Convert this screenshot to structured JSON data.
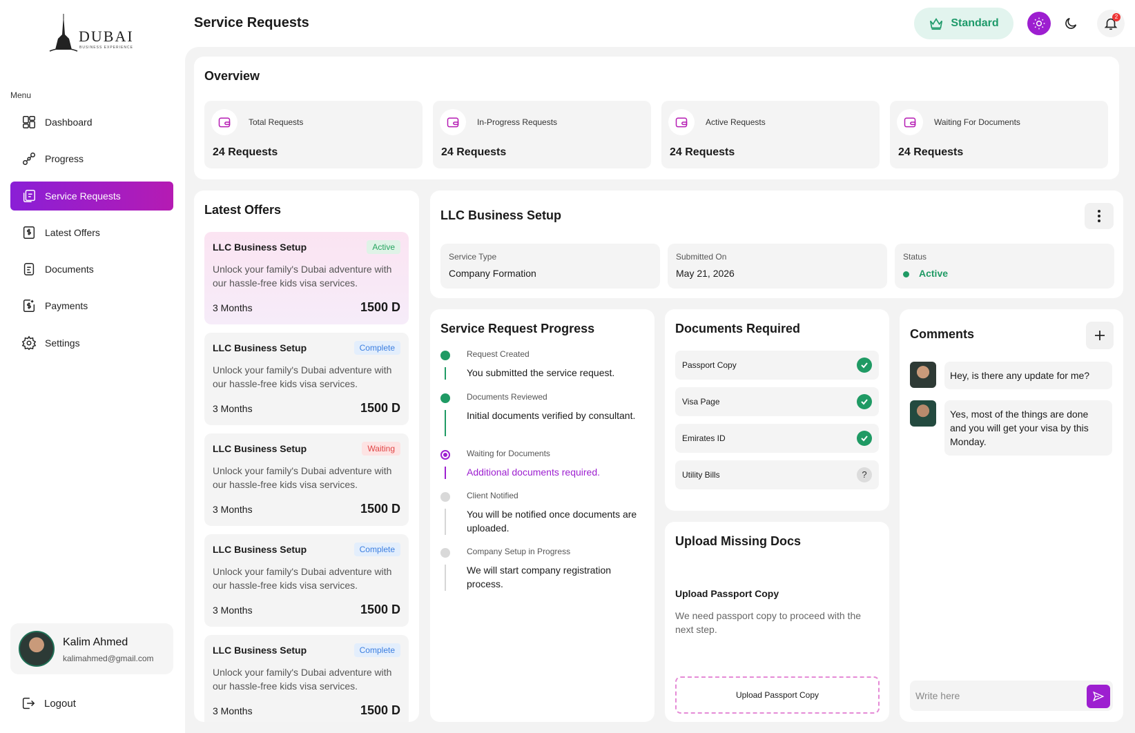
{
  "brand": {
    "name": "DUBAI",
    "tagline": "BUSINESS EXPERIENCE"
  },
  "sidebar": {
    "menu_label": "Menu",
    "items": [
      {
        "label": "Dashboard",
        "icon": "dashboard-icon"
      },
      {
        "label": "Progress",
        "icon": "progress-icon"
      },
      {
        "label": "Service Requests",
        "icon": "service-requests-icon",
        "active": true
      },
      {
        "label": "Latest Offers",
        "icon": "offers-icon"
      },
      {
        "label": "Documents",
        "icon": "documents-icon"
      },
      {
        "label": "Payments",
        "icon": "payments-icon"
      },
      {
        "label": "Settings",
        "icon": "gear-icon"
      }
    ],
    "user": {
      "name": "Kalim Ahmed",
      "email": "kalimahmed@gmail.com"
    },
    "logout_label": "Logout"
  },
  "header": {
    "title": "Service Requests",
    "plan_label": "Standard",
    "notification_count": "2"
  },
  "overview": {
    "title": "Overview",
    "stats": [
      {
        "label": "Total Requests",
        "value": "24 Requests"
      },
      {
        "label": "In-Progress Requests",
        "value": "24 Requests"
      },
      {
        "label": "Active Requests",
        "value": "24 Requests"
      },
      {
        "label": "Waiting For Documents",
        "value": "24 Requests"
      }
    ]
  },
  "offers": {
    "title": "Latest Offers",
    "items": [
      {
        "title": "LLC Business Setup",
        "badge": "Active",
        "desc": "Unlock your family's Dubai adventure with our hassle-free kids visa services.",
        "duration": "3 Months",
        "price": "1500 D"
      },
      {
        "title": "LLC Business Setup",
        "badge": "Complete",
        "desc": "Unlock your family's Dubai adventure with our hassle-free kids visa services.",
        "duration": "3 Months",
        "price": "1500 D"
      },
      {
        "title": "LLC Business Setup",
        "badge": "Waiting",
        "desc": "Unlock your family's Dubai adventure with our hassle-free kids visa services.",
        "duration": "3 Months",
        "price": "1500 D"
      },
      {
        "title": "LLC Business Setup",
        "badge": "Complete",
        "desc": "Unlock your family's Dubai adventure with our hassle-free kids visa services.",
        "duration": "3 Months",
        "price": "1500 D"
      },
      {
        "title": "LLC Business Setup",
        "badge": "Complete",
        "desc": "Unlock your family's Dubai adventure with our hassle-free kids visa services.",
        "duration": "3 Months",
        "price": "1500 D"
      }
    ]
  },
  "request": {
    "title": "LLC Business Setup",
    "service_type_label": "Service Type",
    "service_type": "Company Formation",
    "submitted_label": "Submitted On",
    "submitted": "May 21, 2026",
    "status_label": "Status",
    "status": "Active"
  },
  "progress": {
    "title": "Service Request Progress",
    "steps": [
      {
        "label": "Request Created",
        "text": "You submitted the service request.",
        "state": "done"
      },
      {
        "label": "Documents Reviewed",
        "text": "Initial documents verified by consultant.",
        "state": "done"
      },
      {
        "label": "Waiting for Documents",
        "text": "Additional documents required.",
        "state": "current"
      },
      {
        "label": "Client Notified",
        "text": "You will be notified once documents are uploaded.",
        "state": "pending"
      },
      {
        "label": "Company Setup in Progress",
        "text": "We will start company registration process.",
        "state": "pending"
      }
    ]
  },
  "documents": {
    "title": "Documents Required",
    "items": [
      {
        "label": "Passport Copy",
        "done": true
      },
      {
        "label": "Visa Page",
        "done": true
      },
      {
        "label": "Emirates ID",
        "done": true
      },
      {
        "label": "Utility Bills",
        "done": false,
        "mark": "?"
      }
    ]
  },
  "upload": {
    "title": "Upload Missing Docs",
    "subtitle": "Upload Passport Copy",
    "desc": "We need passport copy to  proceed with the next step.",
    "button_label": "Upload Passport Copy"
  },
  "comments": {
    "title": "Comments",
    "messages": [
      "Hey, is there any update for me?",
      "Yes, most of the things are done and you will get your visa by this Monday."
    ],
    "input_placeholder": "Write here"
  },
  "colors": {
    "accent": "#9d1fd0",
    "accent_gradient_end": "#b51bb3",
    "success": "#1f9a64",
    "plan_bg": "#e2f4ee"
  }
}
